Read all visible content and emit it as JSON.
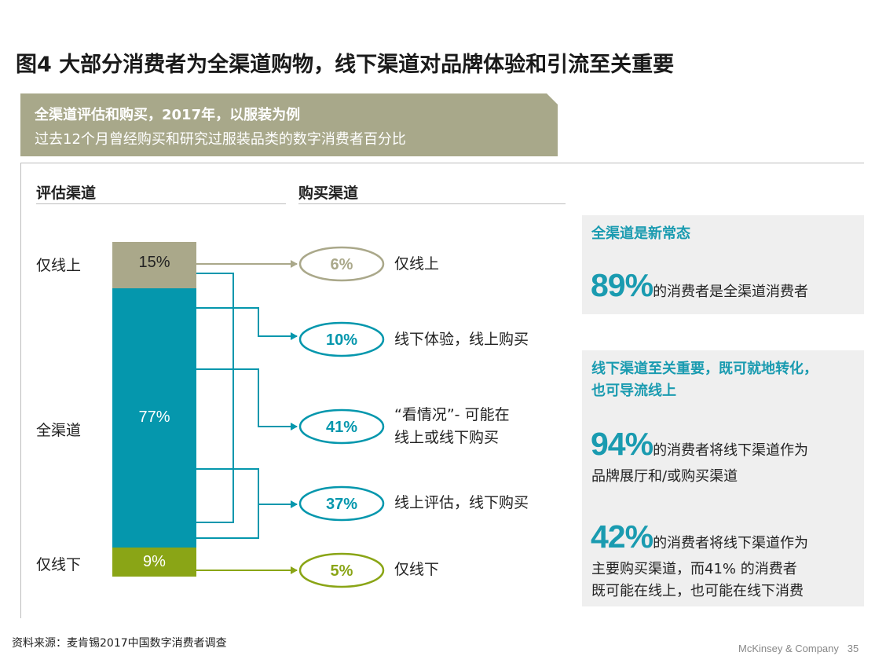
{
  "title": "图4 大部分消费者为全渠道购物，线下渠道对品牌体验和引流至关重要",
  "banner": {
    "line1": "全渠道评估和购买，2017年，以服装为例",
    "line2": "过去12个月曾经购买和研究过服装品类的数字消费者百分比"
  },
  "headers": {
    "evaluate": "评估渠道",
    "purchase": "购买渠道"
  },
  "evaluation": [
    {
      "label": "仅线上",
      "value": "15%",
      "share": 15,
      "color": "#aaa88a"
    },
    {
      "label": "全渠道",
      "value": "77%",
      "share": 77,
      "color": "#0597ad"
    },
    {
      "label": "仅线下",
      "value": "9%",
      "share": 9,
      "color": "#8aa516"
    }
  ],
  "purchase": [
    {
      "value": "6%",
      "desc": [
        "仅线上"
      ],
      "color": "#aaa88a"
    },
    {
      "value": "10%",
      "desc": [
        "线下体验，线上购买"
      ],
      "color": "#0597ad"
    },
    {
      "value": "41%",
      "desc": [
        "“看情况”- 可能在",
        "线上或线下购买"
      ],
      "color": "#0597ad"
    },
    {
      "value": "37%",
      "desc": [
        "线上评估，线下购买"
      ],
      "color": "#0597ad"
    },
    {
      "value": "5%",
      "desc": [
        "仅线下"
      ],
      "color": "#8aa516"
    }
  ],
  "panel1": {
    "title": "全渠道是新常态",
    "stat": "89%",
    "text": "的消费者是全渠道消费者"
  },
  "panel2": {
    "title_line1": "线下渠道至关重要，既可就地转化，",
    "title_line2": "也可导流线上",
    "stat1": "94%",
    "stat1_text": "的消费者将线下渠道作为",
    "stat1_line2": "品牌展厅和/或购买渠道",
    "stat2": "42%",
    "stat2_text": "的消费者将线下渠道作为",
    "stat2_line2": "主要购买渠道，而41% 的消费者",
    "stat2_line3": "既可能在线上，也可能在线下消费"
  },
  "source": "资料来源：麦肯锡2017中国数字消费者调查",
  "footer": {
    "company": "McKinsey & Company",
    "page": "35"
  }
}
